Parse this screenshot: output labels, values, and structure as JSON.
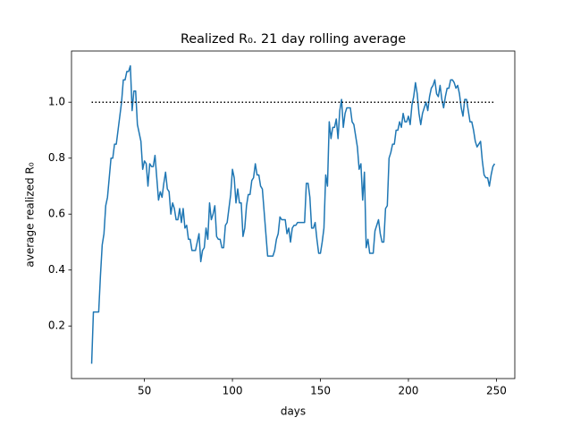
{
  "chart_data": {
    "type": "line",
    "title": "Realized R₀. 21 day rolling average",
    "x_label": "days",
    "y_label": "average realized R₀",
    "xlim": [
      8.55,
      260.45
    ],
    "ylim": [
      0.012,
      1.183
    ],
    "xticks": [
      50,
      100,
      150,
      200,
      250
    ],
    "yticks": [
      0.2,
      0.4,
      0.6,
      0.8,
      {
        "value": 1,
        "label": "1.0"
      }
    ],
    "series": [
      {
        "color": "#1f77b4",
        "linestyle": "solid",
        "x": [
          20,
          21,
          22,
          23,
          24,
          25,
          26,
          27,
          28,
          29,
          30,
          31,
          32,
          33,
          34,
          35,
          36,
          37,
          38,
          39,
          40,
          41,
          42,
          43,
          44,
          45,
          46,
          47,
          48,
          49,
          50,
          51,
          52,
          53,
          54,
          55,
          56,
          57,
          58,
          59,
          60,
          61,
          62,
          63,
          64,
          65,
          66,
          67,
          68,
          69,
          70,
          71,
          72,
          73,
          74,
          75,
          76,
          77,
          78,
          79,
          80,
          81,
          82,
          83,
          84,
          85,
          86,
          87,
          88,
          89,
          90,
          91,
          92,
          93,
          94,
          95,
          96,
          97,
          98,
          99,
          100,
          101,
          102,
          103,
          104,
          105,
          106,
          107,
          108,
          109,
          110,
          111,
          112,
          113,
          114,
          115,
          116,
          117,
          118,
          119,
          120,
          121,
          122,
          123,
          124,
          125,
          126,
          127,
          128,
          129,
          130,
          131,
          132,
          133,
          134,
          135,
          136,
          137,
          138,
          139,
          140,
          141,
          142,
          143,
          144,
          145,
          146,
          147,
          148,
          149,
          150,
          151,
          152,
          153,
          154,
          155,
          156,
          157,
          158,
          159,
          160,
          161,
          162,
          163,
          164,
          165,
          166,
          167,
          168,
          169,
          170,
          171,
          172,
          173,
          174,
          175,
          176,
          177,
          178,
          179,
          180,
          181,
          182,
          183,
          184,
          185,
          186,
          187,
          188,
          189,
          190,
          191,
          192,
          193,
          194,
          195,
          196,
          197,
          198,
          199,
          200,
          201,
          202,
          203,
          204,
          205,
          206,
          207,
          208,
          209,
          210,
          211,
          212,
          213,
          214,
          215,
          216,
          217,
          218,
          219,
          220,
          221,
          222,
          223,
          224,
          225,
          226,
          227,
          228,
          229,
          230,
          231,
          232,
          233,
          234,
          235,
          236,
          237,
          238,
          239,
          240,
          241,
          242,
          243,
          244,
          245,
          246,
          247,
          248,
          249
        ],
        "values": [
          0.065,
          0.25,
          0.25,
          0.25,
          0.25,
          0.38,
          0.49,
          0.53,
          0.63,
          0.66,
          0.73,
          0.8,
          0.8,
          0.85,
          0.85,
          0.9,
          0.95,
          1.0,
          1.08,
          1.08,
          1.11,
          1.11,
          1.13,
          0.97,
          1.04,
          1.04,
          0.92,
          0.89,
          0.86,
          0.76,
          0.79,
          0.78,
          0.7,
          0.78,
          0.77,
          0.77,
          0.81,
          0.73,
          0.65,
          0.68,
          0.66,
          0.71,
          0.75,
          0.69,
          0.68,
          0.6,
          0.64,
          0.62,
          0.58,
          0.58,
          0.62,
          0.57,
          0.62,
          0.55,
          0.56,
          0.51,
          0.51,
          0.47,
          0.47,
          0.47,
          0.5,
          0.53,
          0.43,
          0.47,
          0.48,
          0.55,
          0.51,
          0.64,
          0.58,
          0.6,
          0.63,
          0.52,
          0.51,
          0.51,
          0.48,
          0.48,
          0.56,
          0.57,
          0.62,
          0.67,
          0.76,
          0.73,
          0.64,
          0.69,
          0.64,
          0.64,
          0.52,
          0.55,
          0.63,
          0.67,
          0.67,
          0.72,
          0.73,
          0.78,
          0.74,
          0.74,
          0.7,
          0.69,
          0.61,
          0.53,
          0.45,
          0.45,
          0.45,
          0.45,
          0.47,
          0.51,
          0.53,
          0.59,
          0.58,
          0.58,
          0.58,
          0.53,
          0.55,
          0.5,
          0.55,
          0.56,
          0.56,
          0.57,
          0.57,
          0.57,
          0.57,
          0.57,
          0.71,
          0.71,
          0.66,
          0.55,
          0.55,
          0.57,
          0.51,
          0.46,
          0.46,
          0.5,
          0.55,
          0.74,
          0.7,
          0.93,
          0.87,
          0.91,
          0.91,
          0.94,
          0.87,
          0.97,
          1.01,
          0.91,
          0.96,
          0.98,
          0.98,
          0.98,
          0.93,
          0.92,
          0.88,
          0.84,
          0.76,
          0.78,
          0.65,
          0.75,
          0.48,
          0.51,
          0.46,
          0.46,
          0.46,
          0.54,
          0.56,
          0.58,
          0.53,
          0.5,
          0.5,
          0.62,
          0.63,
          0.8,
          0.82,
          0.85,
          0.85,
          0.9,
          0.9,
          0.93,
          0.91,
          0.96,
          0.93,
          0.93,
          0.95,
          0.92,
          0.99,
          1.02,
          1.07,
          1.03,
          0.96,
          0.92,
          0.96,
          0.98,
          1.0,
          0.97,
          1.02,
          1.05,
          1.06,
          1.08,
          1.03,
          1.02,
          1.06,
          1.01,
          0.98,
          1.02,
          1.05,
          1.05,
          1.08,
          1.08,
          1.07,
          1.05,
          1.06,
          1.03,
          0.98,
          0.95,
          1.01,
          1.01,
          0.97,
          0.93,
          0.93,
          0.9,
          0.86,
          0.84,
          0.85,
          0.86,
          0.79,
          0.74,
          0.73,
          0.73,
          0.7,
          0.74,
          0.77,
          0.78
        ]
      },
      {
        "color": "#000000",
        "linestyle": "dotted",
        "x": [
          20,
          249
        ],
        "values": [
          1,
          1
        ]
      }
    ]
  }
}
